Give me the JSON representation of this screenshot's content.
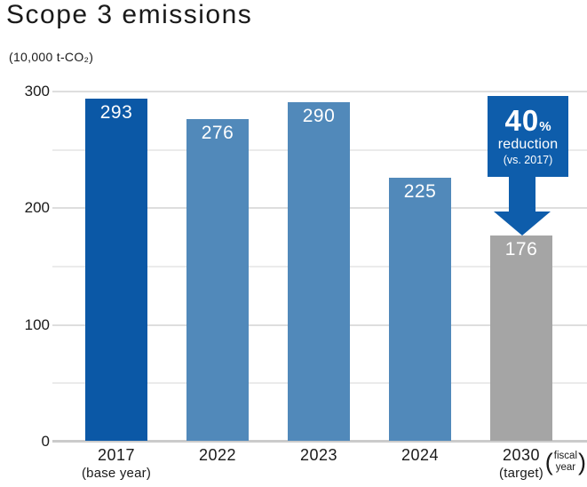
{
  "chart_data": {
    "type": "bar",
    "title": "Scope 3 emissions",
    "unit_label": "(10,000 t-CO₂)",
    "categories": [
      "2017",
      "2022",
      "2023",
      "2024",
      "2030"
    ],
    "category_sublabels": [
      "(base year)",
      "",
      "",
      "",
      "(target)"
    ],
    "values": [
      293,
      276,
      290,
      225,
      176
    ],
    "series": [
      {
        "name": "Scope 3 emissions",
        "values": [
          293,
          276,
          290,
          225,
          176
        ]
      }
    ],
    "bar_colors": [
      "#0b58a6",
      "#5189ba",
      "#5189ba",
      "#5189ba",
      "#a5a5a5"
    ],
    "value_label_color": "#ffffff",
    "ylim": [
      0,
      300
    ],
    "yticks": [
      300,
      200,
      100,
      0
    ],
    "minor_gridlines": [
      250,
      150,
      50
    ],
    "grid": true,
    "legend_position": "none",
    "xlabel": "(fiscal year)",
    "ylabel": "(10,000 t-CO₂)",
    "fiscal_note": {
      "open": "(",
      "line1": "fiscal",
      "line2": "year",
      "close": ")"
    },
    "annotation": {
      "value": "40",
      "unit": "%",
      "line2": "reduction",
      "line3": "(vs. 2017)",
      "applies_to": "2030",
      "box_color": "#0e5dab",
      "arrow_color": "#0e5dab"
    }
  }
}
